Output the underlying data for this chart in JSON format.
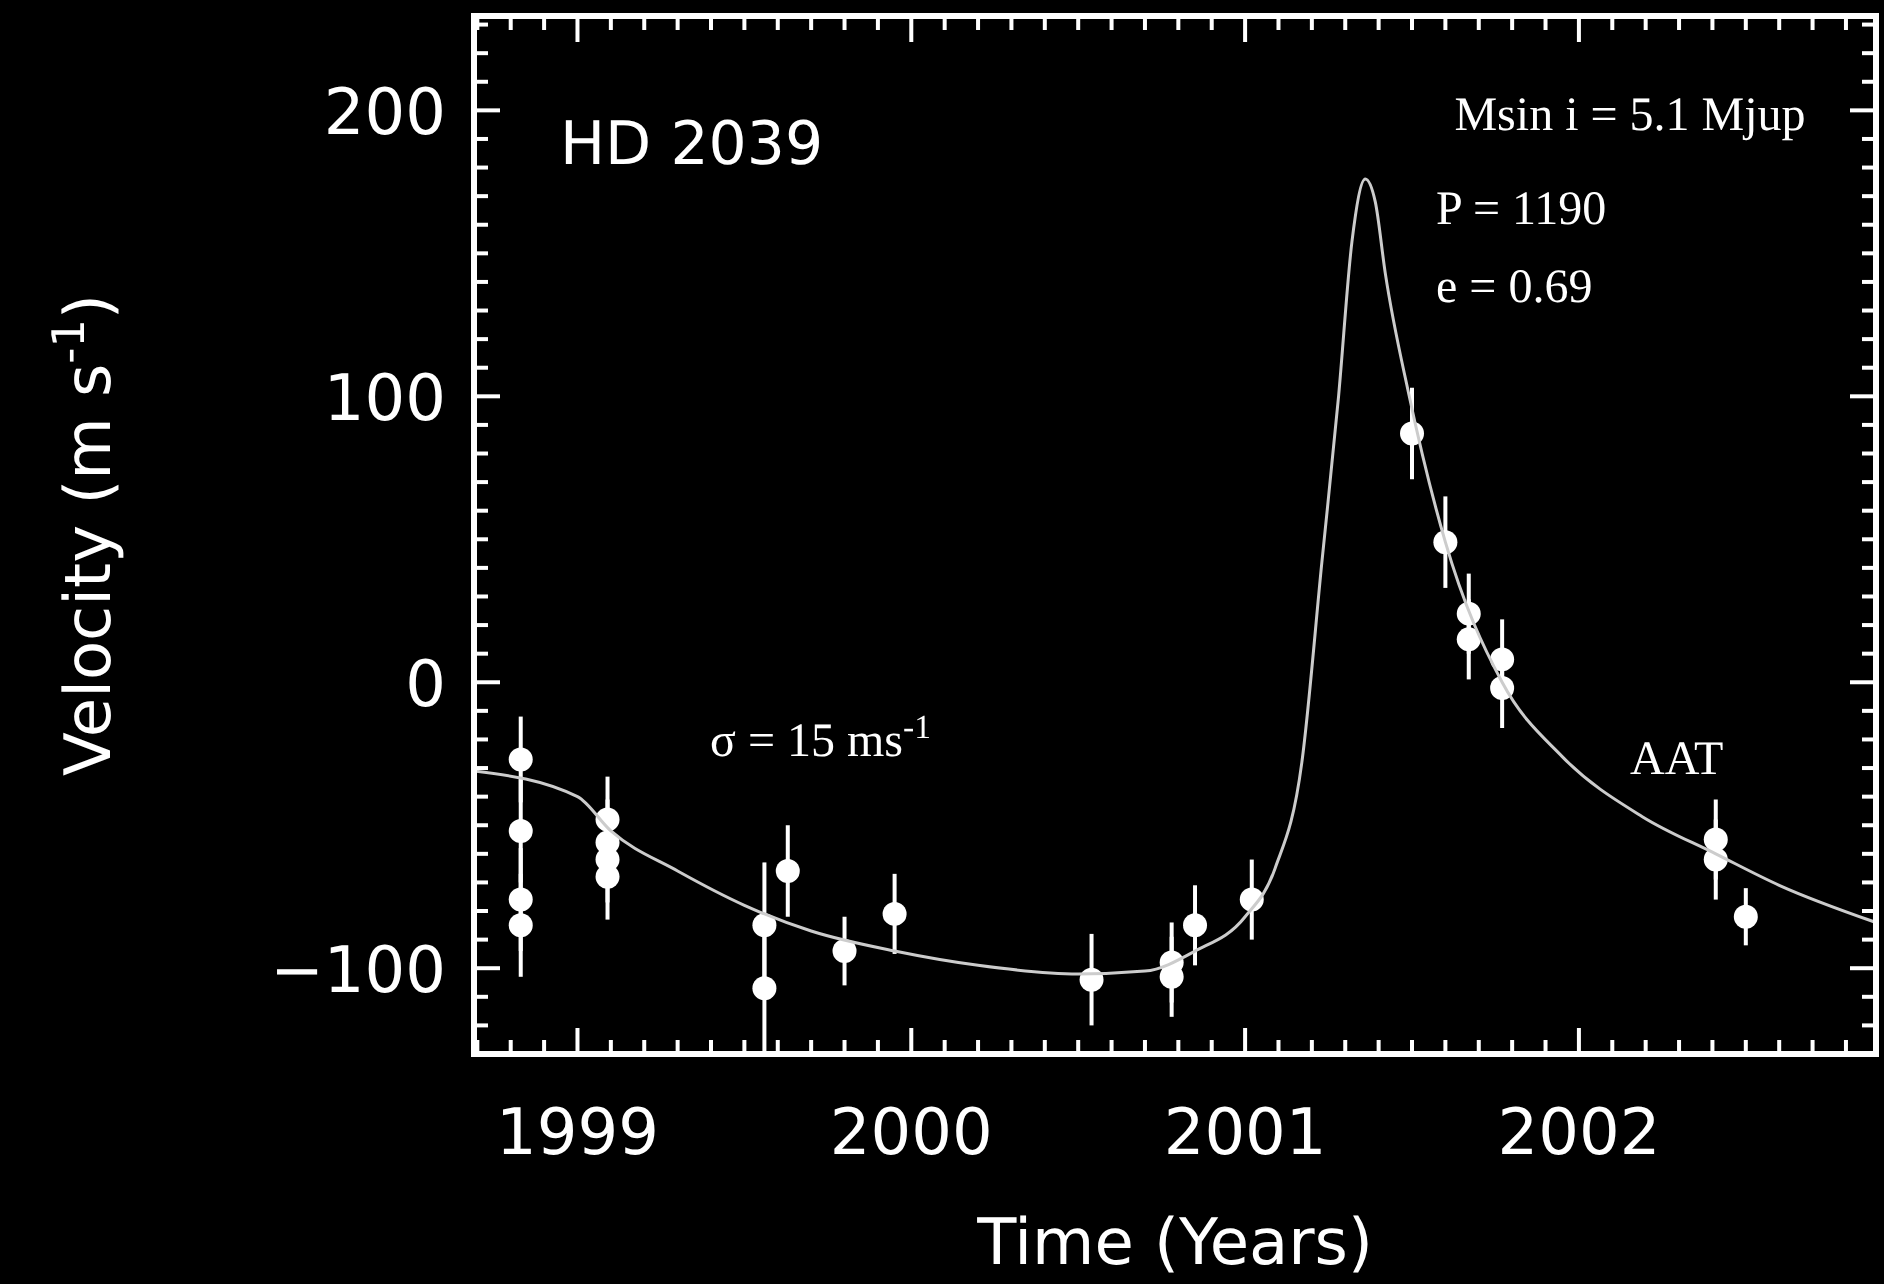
{
  "chart_data": {
    "type": "scatter",
    "xlabel": "Time (Years)",
    "ylabel": "Velocity (m s$^{-1}$)",
    "xlim": [
      1998.69,
      2002.89
    ],
    "ylim": [
      -130,
      233
    ],
    "xticks": [
      {
        "value": 1998.7,
        "label": null
      },
      {
        "value": 1998.8,
        "label": null
      },
      {
        "value": 1998.9,
        "label": null
      },
      1999,
      {
        "value": 1999.1,
        "label": null
      },
      {
        "value": 1999.2,
        "label": null
      },
      {
        "value": 1999.3,
        "label": null
      },
      {
        "value": 1999.4,
        "label": null
      },
      {
        "value": 1999.5,
        "label": null
      },
      {
        "value": 1999.6,
        "label": null
      },
      {
        "value": 1999.7,
        "label": null
      },
      {
        "value": 1999.8,
        "label": null
      },
      {
        "value": 1999.9,
        "label": null
      },
      2000,
      {
        "value": 2000.1,
        "label": null
      },
      {
        "value": 2000.2,
        "label": null
      },
      {
        "value": 2000.3,
        "label": null
      },
      {
        "value": 2000.4,
        "label": null
      },
      {
        "value": 2000.5,
        "label": null
      },
      {
        "value": 2000.6,
        "label": null
      },
      {
        "value": 2000.7,
        "label": null
      },
      {
        "value": 2000.8,
        "label": null
      },
      {
        "value": 2000.9,
        "label": null
      },
      2001,
      {
        "value": 2001.1,
        "label": null
      },
      {
        "value": 2001.2,
        "label": null
      },
      {
        "value": 2001.3,
        "label": null
      },
      {
        "value": 2001.4,
        "label": null
      },
      {
        "value": 2001.5,
        "label": null
      },
      {
        "value": 2001.6,
        "label": null
      },
      {
        "value": 2001.7,
        "label": null
      },
      {
        "value": 2001.8,
        "label": null
      },
      {
        "value": 2001.9,
        "label": null
      },
      2002,
      {
        "value": 2002.1,
        "label": null
      },
      {
        "value": 2002.2,
        "label": null
      },
      {
        "value": 2002.3,
        "label": null
      },
      {
        "value": 2002.4,
        "label": null
      },
      {
        "value": 2002.5,
        "label": null
      },
      {
        "value": 2002.6,
        "label": null
      },
      {
        "value": 2002.7,
        "label": null
      },
      {
        "value": 2002.8,
        "label": null
      }
    ],
    "yticks": [
      {
        "value": -120,
        "label": null
      },
      {
        "value": -110,
        "label": null
      },
      {
        "value": -100,
        "label": "−100"
      },
      {
        "value": -90,
        "label": null
      },
      {
        "value": -80,
        "label": null
      },
      {
        "value": -70,
        "label": null
      },
      {
        "value": -60,
        "label": null
      },
      {
        "value": -50,
        "label": null
      },
      {
        "value": -40,
        "label": null
      },
      {
        "value": -30,
        "label": null
      },
      {
        "value": -20,
        "label": null
      },
      {
        "value": -10,
        "label": null
      },
      0,
      {
        "value": 10,
        "label": null
      },
      {
        "value": 20,
        "label": null
      },
      {
        "value": 30,
        "label": null
      },
      {
        "value": 40,
        "label": null
      },
      {
        "value": 50,
        "label": null
      },
      {
        "value": 60,
        "label": null
      },
      {
        "value": 70,
        "label": null
      },
      {
        "value": 80,
        "label": null
      },
      {
        "value": 90,
        "label": null
      },
      100,
      {
        "value": 110,
        "label": null
      },
      {
        "value": 120,
        "label": null
      },
      {
        "value": 130,
        "label": null
      },
      {
        "value": 140,
        "label": null
      },
      {
        "value": 150,
        "label": null
      },
      {
        "value": 160,
        "label": null
      },
      {
        "value": 170,
        "label": null
      },
      {
        "value": 180,
        "label": null
      },
      {
        "value": 190,
        "label": null
      },
      200,
      {
        "value": 210,
        "label": null
      },
      {
        "value": 220,
        "label": null
      },
      {
        "value": 230,
        "label": null
      }
    ],
    "grid": false,
    "marker": "circle",
    "annotations": [
      "HD 2039",
      "Msin i = 5.1 Mjup",
      "P = 1190",
      "e = 0.69",
      "σ  = 15 ms$^{-1}$",
      "AAT"
    ],
    "series": [
      {
        "color": "#ffffff",
        "x": [
          1998.83,
          1998.83,
          1998.83,
          1998.83,
          1999.09,
          1999.09,
          1999.09,
          1999.09,
          1999.56,
          1999.56,
          1999.63,
          1999.8,
          1999.95,
          2000.54,
          2000.78,
          2000.78,
          2000.85,
          2001.02,
          2001.5,
          2001.6,
          2001.67,
          2001.67,
          2001.77,
          2001.77,
          2002.41,
          2002.41,
          2002.5
        ],
        "values": [
          -27,
          -52,
          -76,
          -85,
          -48,
          -56,
          -62,
          -68,
          -85,
          -107,
          -66,
          -94,
          -81,
          -104,
          -98,
          -103,
          -85,
          -76,
          87,
          49,
          24,
          15,
          8,
          -2,
          -55,
          -62,
          -82
        ],
        "errors": [
          15,
          18,
          18,
          18,
          15,
          15,
          15,
          15,
          22,
          22,
          16,
          12,
          14,
          16,
          14,
          14,
          14,
          14,
          16,
          16,
          14,
          14,
          14,
          14,
          14,
          14,
          10
        ]
      },
      {
        "type": "line",
        "color": "#cccccc",
        "marker": "none",
        "line_style": "solid",
        "x": [
          1998.69,
          1999.0,
          1999.1,
          1999.3,
          1999.5,
          1999.7,
          1999.95,
          2000.2,
          2000.5,
          2000.7,
          2000.85,
          2001.0,
          2001.09,
          2001.17,
          2001.23,
          2001.28,
          2001.32,
          2001.36,
          2001.39,
          2001.42,
          2001.49,
          2001.6,
          2001.77,
          2001.95,
          2002.19,
          2002.41,
          2002.6,
          2002.89
        ],
        "values": [
          -31,
          -40,
          -52,
          -66,
          -78,
          -87,
          -94,
          -99,
          -102,
          -101,
          -94,
          -82,
          -65,
          -28,
          42,
          100,
          154,
          176,
          168,
          143,
          101,
          49,
          0,
          -26,
          -47,
          -60,
          -71,
          -84
        ]
      }
    ]
  }
}
